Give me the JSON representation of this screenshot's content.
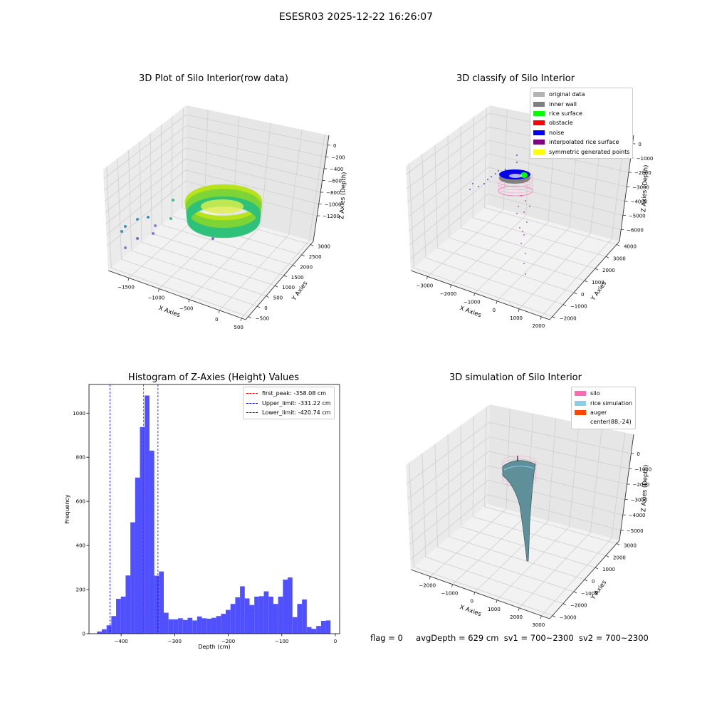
{
  "page_title": "ESESR03 2025-12-22 16:26:07",
  "panels": {
    "raw": {
      "title": "3D Plot of Silo Interior(row data)",
      "x_label": "X Axies",
      "y_label": "Y Axies",
      "z_label": "Z Axies (Depth)",
      "x_ticks": [
        "−1500",
        "−1000",
        "−500",
        "0",
        "500"
      ],
      "y_ticks": [
        "−500",
        "0",
        "500",
        "1000",
        "1500",
        "2000",
        "2500",
        "3000"
      ],
      "z_ticks": [
        "0",
        "−200",
        "−400",
        "−600",
        "−800",
        "−1000",
        "−1200"
      ]
    },
    "classify": {
      "title": "3D classify of Silo Interior",
      "x_label": "X Axies",
      "y_label": "Y Axies",
      "z_label": "Z Axies (Depth)",
      "x_ticks": [
        "−3000",
        "−2000",
        "−1000",
        "0",
        "1000",
        "2000"
      ],
      "y_ticks": [
        "−2000",
        "−1000",
        "0",
        "1000",
        "2000",
        "3000",
        "4000"
      ],
      "z_ticks": [
        "0",
        "−1000",
        "−2000",
        "−3000",
        "−4000",
        "−5000",
        "−6000"
      ],
      "legend": [
        {
          "label": "original data",
          "color": "#b3b3b3"
        },
        {
          "label": "inner wall",
          "color": "#808080"
        },
        {
          "label": "rice surface",
          "color": "#00ff00"
        },
        {
          "label": "obstacle",
          "color": "#ff0000"
        },
        {
          "label": "noise",
          "color": "#0000ff"
        },
        {
          "label": "interpolated rice surface",
          "color": "#800080"
        },
        {
          "label": "symmetric generated points",
          "color": "#ffff00"
        }
      ]
    },
    "histogram": {
      "title": "Histogram of Z-Axies (Height) Values",
      "x_label": "Depth (cm)",
      "y_label": "Frequency",
      "legend": [
        {
          "label": "first_peak: -358.08 cm",
          "color": "#ff0000"
        },
        {
          "label": "Upper_limit: -331.22 cm",
          "color": "#0000ff"
        },
        {
          "label": "Lower_limit: -420.74 cm",
          "color": "#0000ff"
        }
      ]
    },
    "simulation": {
      "title": "3D simulation of Silo Interior",
      "x_label": "X Axies",
      "y_label": "Y Axies",
      "z_label": "Z Axies (Depth)",
      "x_ticks": [
        "−2000",
        "−1000",
        "0",
        "1000",
        "2000",
        "3000"
      ],
      "y_ticks": [
        "−3000",
        "−2000",
        "−1000",
        "0",
        "1000",
        "2000",
        "3000"
      ],
      "z_ticks": [
        "0",
        "−1000",
        "−2000",
        "−3000",
        "−4000",
        "−5000"
      ],
      "legend": [
        {
          "label": "silo",
          "color": "#ff69b4"
        },
        {
          "label": "rice simulation",
          "color": "#87ceeb"
        },
        {
          "label": "auger",
          "color": "#ff4500"
        },
        {
          "label": "center(88,-24)",
          "color": "#ffffff"
        }
      ]
    }
  },
  "status": {
    "flag": "flag = 0",
    "avg_depth": "avgDepth = 629 cm",
    "sv1": "sv1 = 700~2300",
    "sv2": "sv2 = 700~2300"
  },
  "chart_data": [
    {
      "type": "bar",
      "title": "Histogram of Z-Axies (Height) Values",
      "xlabel": "Depth (cm)",
      "ylabel": "Frequency",
      "xlim": [
        -460,
        8
      ],
      "ylim": [
        0,
        1130
      ],
      "x_ticks": [
        -400,
        -300,
        -200,
        -100,
        0
      ],
      "y_ticks": [
        0,
        200,
        400,
        600,
        800,
        1000
      ],
      "bin_start": -445,
      "bin_width": 8.9,
      "values": [
        10,
        20,
        38,
        80,
        158,
        168,
        264,
        505,
        708,
        937,
        1080,
        830,
        263,
        282,
        95,
        65,
        65,
        70,
        62,
        72,
        60,
        78,
        70,
        68,
        72,
        80,
        90,
        108,
        135,
        165,
        215,
        160,
        130,
        168,
        170,
        192,
        168,
        135,
        168,
        245,
        255,
        75,
        135,
        155,
        30,
        22,
        35,
        58,
        60
      ],
      "vlines": [
        {
          "name": "first_peak: -358.08 cm",
          "x": -358.08,
          "color": "#ff0000"
        },
        {
          "name": "Upper_limit: -331.22 cm",
          "x": -331.22,
          "color": "#0000ff"
        },
        {
          "name": "Lower_limit: -420.74 cm",
          "x": -420.74,
          "color": "#0000ff"
        }
      ],
      "bar_color": "#5050ff",
      "legend_position": "top-right"
    }
  ]
}
